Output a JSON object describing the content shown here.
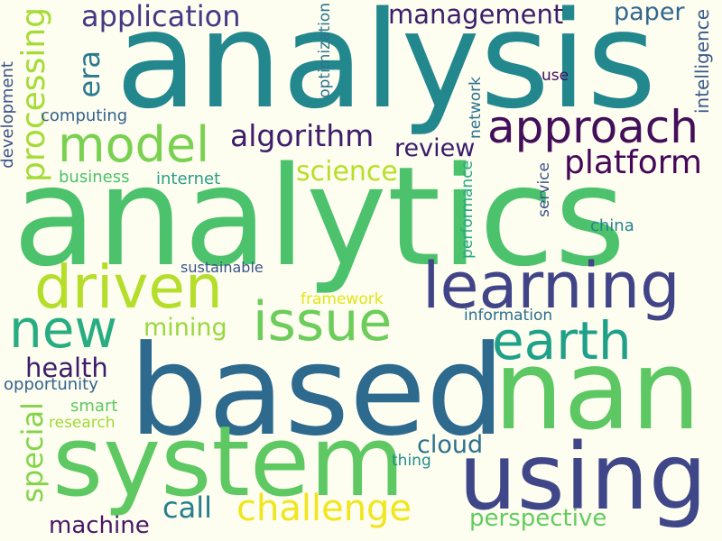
{
  "words": [
    {
      "text": "analytics",
      "color": "#4cc26c"
    },
    {
      "text": "analysis",
      "color": "#23878e"
    },
    {
      "text": "based",
      "color": "#2d6a8e"
    },
    {
      "text": "nan",
      "color": "#5dc863"
    },
    {
      "text": "system",
      "color": "#5ec962"
    },
    {
      "text": "using",
      "color": "#3f4788"
    },
    {
      "text": "learning",
      "color": "#414487"
    },
    {
      "text": "driven",
      "color": "#b5de2b"
    },
    {
      "text": "model",
      "color": "#7ad151"
    },
    {
      "text": "approach",
      "color": "#440f5a"
    },
    {
      "text": "issue",
      "color": "#6ccd5a"
    },
    {
      "text": "earth",
      "color": "#1fa088"
    },
    {
      "text": "new",
      "color": "#27ad81"
    },
    {
      "text": "challenge",
      "color": "#f1e51d"
    },
    {
      "text": "platform",
      "color": "#46075a"
    },
    {
      "text": "algorithm",
      "color": "#3e1d6b"
    },
    {
      "text": "application",
      "color": "#443983"
    },
    {
      "text": "management",
      "color": "#3d1e6b"
    },
    {
      "text": "processing",
      "color": "#a5db36"
    },
    {
      "text": "science",
      "color": "#b8de29"
    },
    {
      "text": "health",
      "color": "#3d1c6b"
    },
    {
      "text": "review",
      "color": "#3b1c6c"
    },
    {
      "text": "paper",
      "color": "#31678e"
    },
    {
      "text": "special",
      "color": "#84d44b"
    },
    {
      "text": "era",
      "color": "#2a7b8e"
    },
    {
      "text": "mining",
      "color": "#99d83f"
    },
    {
      "text": "machine",
      "color": "#481668"
    },
    {
      "text": "call",
      "color": "#277e8e"
    },
    {
      "text": "cloud",
      "color": "#2c728e"
    },
    {
      "text": "perspective",
      "color": "#63cb5f"
    },
    {
      "text": "intelligence",
      "color": "#38598c"
    },
    {
      "text": "optimization",
      "color": "#2b748e"
    },
    {
      "text": "network",
      "color": "#2c718e"
    },
    {
      "text": "computing",
      "color": "#33628d"
    },
    {
      "text": "development",
      "color": "#3b518b"
    },
    {
      "text": "business",
      "color": "#4cc26c"
    },
    {
      "text": "internet",
      "color": "#2c9d88"
    },
    {
      "text": "sustainable",
      "color": "#3b528b"
    },
    {
      "text": "framework",
      "color": "#e2e418"
    },
    {
      "text": "information",
      "color": "#2e6e8e"
    },
    {
      "text": "performance",
      "color": "#25a985"
    },
    {
      "text": "service",
      "color": "#3a538b"
    },
    {
      "text": "china",
      "color": "#26828e"
    },
    {
      "text": "use",
      "color": "#460b5e"
    },
    {
      "text": "opportunity",
      "color": "#33638d"
    },
    {
      "text": "smart",
      "color": "#5ec962"
    },
    {
      "text": "research",
      "color": "#a0da39"
    },
    {
      "text": "thing",
      "color": "#228c8d"
    }
  ]
}
